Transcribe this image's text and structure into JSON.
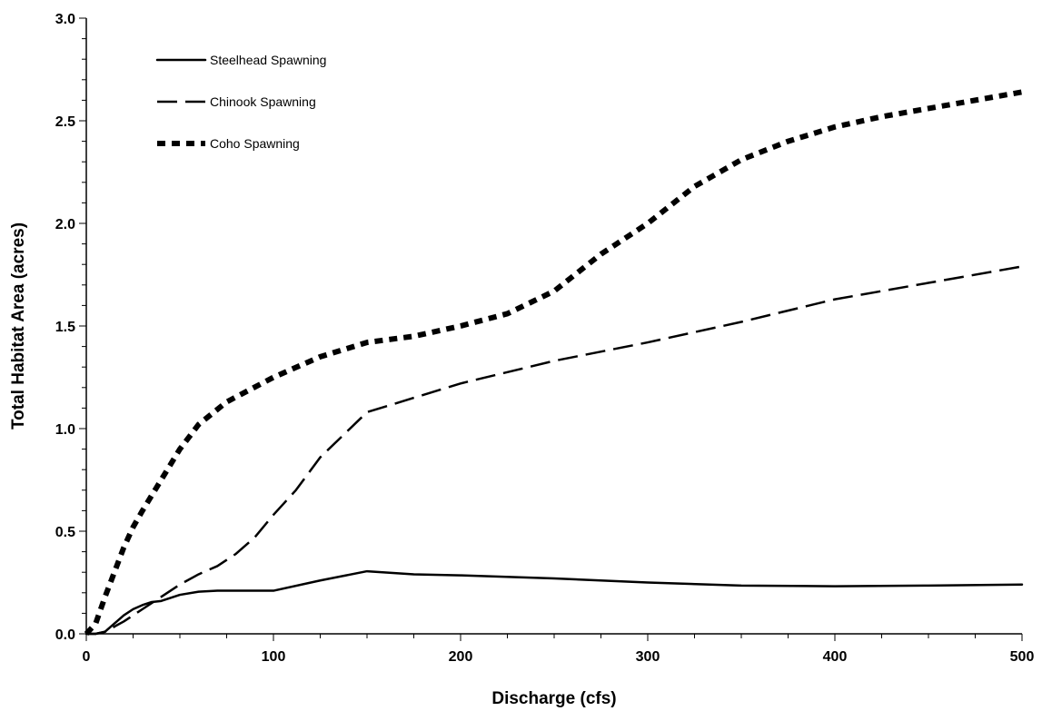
{
  "chart_data": {
    "type": "line",
    "title": "",
    "xlabel": "Discharge (cfs)",
    "ylabel": "Total Habitat Area (acres)",
    "xlim": [
      0,
      500
    ],
    "ylim": [
      0,
      3.0
    ],
    "x_ticks": [
      "0",
      "100",
      "200",
      "300",
      "400",
      "500"
    ],
    "y_ticks": [
      "0.0",
      "0.5",
      "1.0",
      "1.5",
      "2.0",
      "2.5",
      "3.0"
    ],
    "grid": false,
    "legend_position": "top-left",
    "series": [
      {
        "name": "Steelhead Spawning",
        "style": "solid",
        "color": "#000000",
        "points": [
          [
            0,
            0
          ],
          [
            5,
            0
          ],
          [
            10,
            0.01
          ],
          [
            15,
            0.05
          ],
          [
            20,
            0.09
          ],
          [
            25,
            0.12
          ],
          [
            30,
            0.14
          ],
          [
            35,
            0.155
          ],
          [
            40,
            0.16
          ],
          [
            50,
            0.19
          ],
          [
            60,
            0.205
          ],
          [
            70,
            0.21
          ],
          [
            100,
            0.21
          ],
          [
            125,
            0.26
          ],
          [
            150,
            0.305
          ],
          [
            175,
            0.29
          ],
          [
            200,
            0.285
          ],
          [
            250,
            0.27
          ],
          [
            300,
            0.25
          ],
          [
            350,
            0.235
          ],
          [
            400,
            0.232
          ],
          [
            450,
            0.235
          ],
          [
            500,
            0.24
          ]
        ]
      },
      {
        "name": "Chinook Spawning",
        "style": "dashed",
        "color": "#000000",
        "points": [
          [
            0,
            0
          ],
          [
            5,
            0
          ],
          [
            10,
            0.01
          ],
          [
            20,
            0.06
          ],
          [
            30,
            0.12
          ],
          [
            40,
            0.18
          ],
          [
            50,
            0.24
          ],
          [
            60,
            0.29
          ],
          [
            70,
            0.33
          ],
          [
            80,
            0.39
          ],
          [
            90,
            0.47
          ],
          [
            100,
            0.58
          ],
          [
            112,
            0.7
          ],
          [
            125,
            0.86
          ],
          [
            150,
            1.08
          ],
          [
            175,
            1.15
          ],
          [
            200,
            1.22
          ],
          [
            250,
            1.33
          ],
          [
            300,
            1.42
          ],
          [
            350,
            1.52
          ],
          [
            400,
            1.63
          ],
          [
            450,
            1.71
          ],
          [
            500,
            1.79
          ]
        ]
      },
      {
        "name": "Coho Spawning",
        "style": "dotted",
        "color": "#000000",
        "points": [
          [
            0,
            0
          ],
          [
            5,
            0.05
          ],
          [
            10,
            0.18
          ],
          [
            15,
            0.3
          ],
          [
            20,
            0.42
          ],
          [
            25,
            0.52
          ],
          [
            30,
            0.6
          ],
          [
            40,
            0.75
          ],
          [
            50,
            0.9
          ],
          [
            60,
            1.02
          ],
          [
            75,
            1.13
          ],
          [
            100,
            1.25
          ],
          [
            125,
            1.35
          ],
          [
            150,
            1.42
          ],
          [
            175,
            1.45
          ],
          [
            200,
            1.5
          ],
          [
            225,
            1.56
          ],
          [
            250,
            1.67
          ],
          [
            275,
            1.85
          ],
          [
            300,
            2.0
          ],
          [
            325,
            2.18
          ],
          [
            350,
            2.31
          ],
          [
            375,
            2.4
          ],
          [
            400,
            2.47
          ],
          [
            425,
            2.52
          ],
          [
            450,
            2.56
          ],
          [
            500,
            2.64
          ]
        ]
      }
    ]
  }
}
